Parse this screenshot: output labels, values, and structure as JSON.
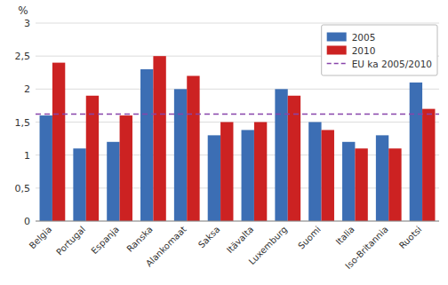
{
  "chart_data": {
    "type": "bar",
    "y_label": "%",
    "categories": [
      "Belgia",
      "Portugal",
      "Espanja",
      "Ranska",
      "Alankomaat",
      "Saksa",
      "Itävalta",
      "Luxemburg",
      "Suomi",
      "Italia",
      "Iso-Britannia",
      "Ruotsi"
    ],
    "series": [
      {
        "name": "2005",
        "color": "#3C6EB4",
        "values": [
          1.6,
          1.1,
          1.2,
          2.3,
          2.0,
          1.3,
          1.38,
          2.0,
          1.5,
          1.2,
          1.3,
          2.1
        ]
      },
      {
        "name": "2010",
        "color": "#CC2222",
        "values": [
          2.4,
          1.9,
          1.6,
          2.5,
          2.2,
          1.5,
          1.5,
          1.9,
          1.38,
          1.1,
          1.1,
          1.7
        ]
      }
    ],
    "reference_line": {
      "name": "EU ka 2005/2010",
      "value": 1.62,
      "color": "#8844AA",
      "line_style": "dashed"
    },
    "ylim": [
      0,
      3
    ],
    "yticks": [
      0,
      {
        "value": 0.5,
        "label": "0,5"
      },
      1,
      {
        "value": 1.5,
        "label": "1,5"
      },
      2,
      {
        "value": 2.5,
        "label": "2,5"
      },
      3
    ],
    "grid": true,
    "legend": "upper right"
  }
}
